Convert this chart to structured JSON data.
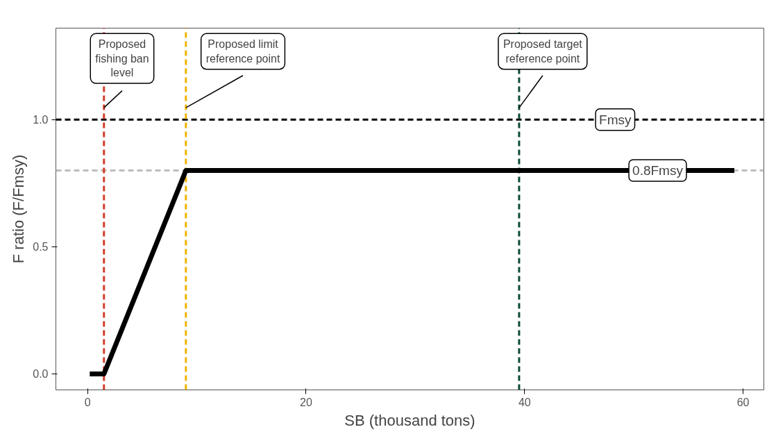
{
  "chart_data": {
    "type": "line",
    "xlabel": "SB (thousand tons)",
    "ylabel": "F ratio (F/Fmsy)",
    "x": [
      0.2,
      1.5,
      9.0,
      59.2
    ],
    "series": [
      {
        "color": "#000000",
        "values": [
          0,
          0,
          0.8,
          0.8
        ]
      }
    ],
    "xlim": [
      -2.9,
      61.9
    ],
    "ylim": [
      -0.063,
      1.36
    ],
    "xticks": [
      0,
      20,
      40,
      60
    ],
    "yticks": [
      {
        "value": 0,
        "label": "0.0"
      },
      {
        "value": 0.5,
        "label": "0.5"
      },
      {
        "value": 1,
        "label": "1.0"
      }
    ],
    "ref_lines": [
      {
        "axis": "y",
        "value": 1.0,
        "label": "Fmsy",
        "color": "#000000",
        "line_style": "dashed"
      },
      {
        "axis": "y",
        "value": 0.8,
        "label": "0.8Fmsy",
        "color": "#bdbdbd",
        "line_style": "dashed"
      },
      {
        "axis": "x",
        "value": 1.5,
        "label": "Proposed\nfishing ban\nlevel",
        "color": "#d23c28",
        "line_style": "dashed"
      },
      {
        "axis": "x",
        "value": 9.0,
        "label": "Proposed limit\nreference point",
        "color": "#efb300",
        "line_style": "dashed"
      },
      {
        "axis": "x",
        "value": 39.5,
        "label": "Proposed target\nreference point",
        "color": "#0c4a38",
        "line_style": "dashed"
      }
    ],
    "grid": false,
    "marker": "none",
    "line_style": "solid"
  }
}
